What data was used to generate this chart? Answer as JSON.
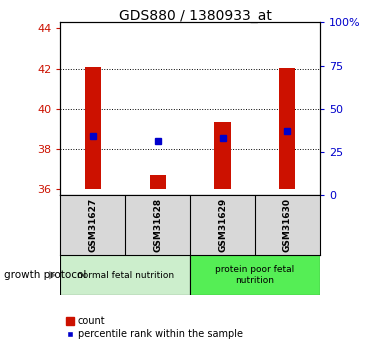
{
  "title": "GDS880 / 1380933_at",
  "samples": [
    "GSM31627",
    "GSM31628",
    "GSM31629",
    "GSM31630"
  ],
  "count_values": [
    42.1,
    36.7,
    39.35,
    42.05
  ],
  "count_base": 36.0,
  "percentile_values": [
    38.65,
    38.4,
    38.55,
    38.9
  ],
  "ylim_left": [
    35.7,
    44.3
  ],
  "yticks_left": [
    36,
    38,
    40,
    42,
    44
  ],
  "yticks_right": [
    0,
    25,
    50,
    75,
    100
  ],
  "ytick_labels_right": [
    "0",
    "25",
    "50",
    "75",
    "100%"
  ],
  "bar_color": "#cc1100",
  "dot_color": "#0000cc",
  "bar_width": 0.25,
  "groups": [
    {
      "label": "normal fetal nutrition",
      "samples": [
        0,
        1
      ],
      "color": "#cceecc"
    },
    {
      "label": "protein poor fetal\nnutrition",
      "samples": [
        2,
        3
      ],
      "color": "#55ee55"
    }
  ],
  "growth_protocol_label": "growth protocol",
  "legend_count_label": "count",
  "legend_pct_label": "percentile rank within the sample",
  "tick_color_left": "#cc1100",
  "tick_color_right": "#0000cc",
  "background_color": "#ffffff",
  "plot_bg_color": "#ffffff",
  "gridline_ticks": [
    38,
    40,
    42
  ],
  "title_fontsize": 10,
  "sample_label_fontsize": 6.5,
  "group_label_fontsize": 6.5,
  "legend_fontsize": 7,
  "axis_tick_fontsize": 8
}
